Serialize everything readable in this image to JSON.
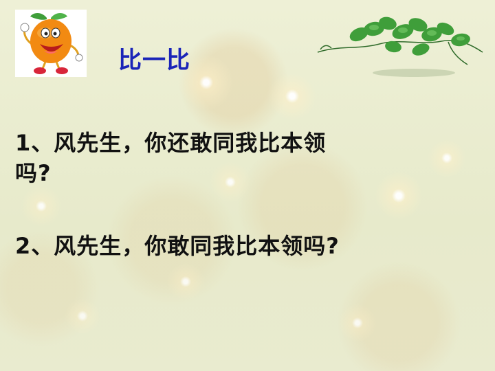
{
  "slide": {
    "title": "比一比",
    "questions": [
      {
        "line1": "1、风先生，你还敢同我比本领",
        "line2": "吗?"
      },
      {
        "line1": "2、风先生，你敢同我比本领吗?"
      }
    ]
  },
  "colors": {
    "title": "#1a24b8",
    "body_text": "#111111",
    "background": "#e9eccd",
    "orange": "#f28a12",
    "leaf": "#3f9e3a"
  },
  "icons": {
    "mascot": "orange-cartoon-icon",
    "decoration": "vine-leaves-icon"
  }
}
